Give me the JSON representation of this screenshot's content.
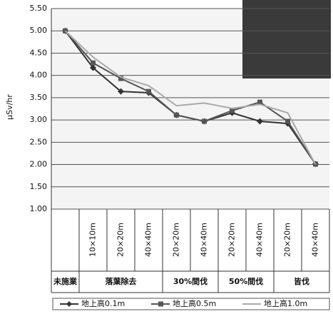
{
  "chart_data": {
    "type": "line",
    "y_label": "μSv/hr",
    "categories": [
      null,
      "10×10m",
      "20×20m",
      "40×40m",
      "20×20m",
      "40×40m",
      "20×20m",
      "40×40m",
      "20×20m",
      "40×40m"
    ],
    "groups": [
      {
        "label": "未施業",
        "span": 1
      },
      {
        "label": "落葉除去",
        "span": 3
      },
      {
        "label": "30%間伐",
        "span": 2
      },
      {
        "label": "50%間伐",
        "span": 2
      },
      {
        "label": "皆伐",
        "span": 2
      }
    ],
    "series": [
      {
        "name": "地上高0.1m",
        "color": "#333333",
        "marker": "diamond",
        "values": [
          5.0,
          4.17,
          3.64,
          3.61,
          3.11,
          2.97,
          3.16,
          2.97,
          2.92,
          2.01
        ]
      },
      {
        "name": "地上高0.5m",
        "color": "#555555",
        "marker": "square",
        "values": [
          5.0,
          4.28,
          3.93,
          3.64,
          3.11,
          2.97,
          3.21,
          3.4,
          2.97,
          2.01
        ]
      },
      {
        "name": "地上高1.0m",
        "color": "#aaaaaa",
        "marker": "none",
        "values": [
          5.0,
          4.41,
          3.96,
          3.77,
          3.32,
          3.38,
          3.26,
          3.35,
          3.16,
          2.0
        ]
      }
    ],
    "ylim": [
      1.0,
      5.5
    ],
    "yticks": [
      {
        "value": 1.0,
        "label": "1.00"
      },
      {
        "value": 1.5,
        "label": "1.50"
      },
      {
        "value": 2.0,
        "label": "2.00"
      },
      {
        "value": 2.5,
        "label": "2.50"
      },
      {
        "value": 3.0,
        "label": "3.00"
      },
      {
        "value": 3.5,
        "label": "3.50"
      },
      {
        "value": 4.0,
        "label": "4.00"
      },
      {
        "value": 4.5,
        "label": "4.50"
      },
      {
        "value": 5.0,
        "label": "5.00"
      },
      {
        "value": 5.5,
        "label": "5.50"
      }
    ],
    "grid": true
  }
}
